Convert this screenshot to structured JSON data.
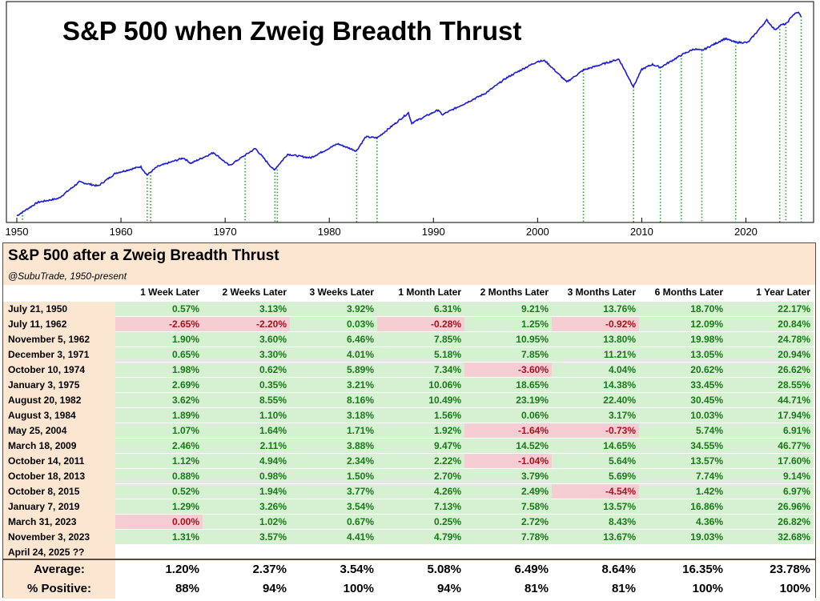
{
  "chart_data": {
    "type": "line",
    "title": "S&P 500 when Zweig Breadth Thrust",
    "xlabel": "",
    "ylabel": "",
    "yscale": "log",
    "xlim": [
      1949,
      2026.5
    ],
    "x_ticks": [
      "1950",
      "1960",
      "1970",
      "1980",
      "1990",
      "2000",
      "2010",
      "2020"
    ],
    "grid": false,
    "series": [
      {
        "color": "#1a1ad6",
        "x": [
          1950.0,
          1952.0,
          1954.0,
          1956.0,
          1957.8,
          1959.5,
          1961.9,
          1962.5,
          1963.5,
          1966.0,
          1966.7,
          1968.9,
          1970.4,
          1972.9,
          1974.7,
          1974.9,
          1976.0,
          1977.0,
          1978.2,
          1980.8,
          1982.6,
          1983.5,
          1984.6,
          1987.6,
          1987.9,
          1990.5,
          1990.8,
          1995.0,
          1997.0,
          1998.5,
          2000.0,
          2000.7,
          2002.8,
          2004.4,
          2007.8,
          2009.2,
          2010.0,
          2011.0,
          2011.8,
          2013.8,
          2015.0,
          2015.8,
          2018.0,
          2019.0,
          2020.2,
          2022.0,
          2022.8,
          2023.3,
          2023.9,
          2024.5,
          2025.0,
          2025.3
        ],
        "y": [
          17,
          25,
          28,
          45,
          40,
          58,
          70,
          55,
          70,
          90,
          77,
          105,
          72,
          118,
          63,
          68,
          100,
          95,
          90,
          135,
          110,
          165,
          160,
          330,
          245,
          360,
          310,
          580,
          900,
          1150,
          1450,
          1480,
          800,
          1130,
          1550,
          700,
          1150,
          1330,
          1220,
          1740,
          2070,
          1990,
          2800,
          2510,
          2500,
          4750,
          3600,
          4100,
          4300,
          5500,
          6000,
          5300
        ]
      }
    ],
    "events": [
      "1950.55",
      "1962.52",
      "1962.85",
      "1971.92",
      "1974.78",
      "1975.01",
      "1982.63",
      "1984.59",
      "2004.40",
      "2009.21",
      "2011.79",
      "2013.80",
      "2015.77",
      "2019.02",
      "2023.25",
      "2023.84",
      "2025.31"
    ]
  },
  "table": {
    "title": "S&P 500 after a Zweig Breadth Thrust",
    "credit": "@SubuTrade, 1950-present",
    "columns": [
      "1 Week Later",
      "2 Weeks Later",
      "3 Weeks Later",
      "1 Month Later",
      "2 Months Later",
      "3 Months Later",
      "6 Months Later",
      "1 Year Later"
    ],
    "rows": [
      {
        "date": "July 21, 1950",
        "values": [
          "0.57%",
          "3.13%",
          "3.92%",
          "6.31%",
          "9.21%",
          "13.76%",
          "18.70%",
          "22.17%"
        ]
      },
      {
        "date": "July 11, 1962",
        "values": [
          "-2.65%",
          "-2.20%",
          "0.03%",
          "-0.28%",
          "1.25%",
          "-0.92%",
          "12.09%",
          "20.84%"
        ]
      },
      {
        "date": "November 5, 1962",
        "values": [
          "1.90%",
          "3.60%",
          "6.46%",
          "7.85%",
          "10.95%",
          "13.80%",
          "19.98%",
          "24.78%"
        ]
      },
      {
        "date": "December 3, 1971",
        "values": [
          "0.65%",
          "3.30%",
          "4.01%",
          "5.18%",
          "7.85%",
          "11.21%",
          "13.05%",
          "20.94%"
        ]
      },
      {
        "date": "October 10, 1974",
        "values": [
          "1.98%",
          "0.62%",
          "5.89%",
          "7.34%",
          "-3.60%",
          "4.04%",
          "20.62%",
          "26.62%"
        ]
      },
      {
        "date": "January 3, 1975",
        "values": [
          "2.69%",
          "0.35%",
          "3.21%",
          "10.06%",
          "18.65%",
          "14.38%",
          "33.45%",
          "28.55%"
        ]
      },
      {
        "date": "August 20, 1982",
        "values": [
          "3.62%",
          "8.55%",
          "8.16%",
          "10.49%",
          "23.19%",
          "22.40%",
          "30.45%",
          "44.71%"
        ]
      },
      {
        "date": "August 3, 1984",
        "values": [
          "1.89%",
          "1.10%",
          "3.18%",
          "1.56%",
          "0.06%",
          "3.17%",
          "10.03%",
          "17.94%"
        ]
      },
      {
        "date": "May 25, 2004",
        "values": [
          "1.07%",
          "1.64%",
          "1.71%",
          "1.92%",
          "-1.64%",
          "-0.73%",
          "5.74%",
          "6.91%"
        ]
      },
      {
        "date": "March 18, 2009",
        "values": [
          "2.46%",
          "2.11%",
          "3.88%",
          "9.47%",
          "14.52%",
          "14.65%",
          "34.55%",
          "46.77%"
        ]
      },
      {
        "date": "October 14, 2011",
        "values": [
          "1.12%",
          "4.94%",
          "2.34%",
          "2.22%",
          "-1.04%",
          "5.64%",
          "13.57%",
          "17.60%"
        ]
      },
      {
        "date": "October 18, 2013",
        "values": [
          "0.88%",
          "0.98%",
          "1.50%",
          "2.70%",
          "3.79%",
          "5.69%",
          "7.74%",
          "9.14%"
        ]
      },
      {
        "date": "October 8, 2015",
        "values": [
          "0.52%",
          "1.94%",
          "3.77%",
          "4.26%",
          "2.49%",
          "-4.54%",
          "1.42%",
          "6.97%"
        ]
      },
      {
        "date": "January 7, 2019",
        "values": [
          "1.29%",
          "3.26%",
          "3.54%",
          "7.13%",
          "7.58%",
          "13.57%",
          "16.86%",
          "26.96%"
        ]
      },
      {
        "date": "March 31, 2023",
        "values": [
          "0.00%",
          "1.02%",
          "0.67%",
          "0.25%",
          "2.72%",
          "8.43%",
          "4.36%",
          "26.82%"
        ]
      },
      {
        "date": "November 3, 2023",
        "values": [
          "1.31%",
          "3.57%",
          "4.41%",
          "4.79%",
          "7.78%",
          "13.67%",
          "19.03%",
          "32.68%"
        ]
      },
      {
        "date": "April 24, 2025 ??",
        "values": []
      }
    ],
    "negative_cells": [
      [
        1,
        0
      ],
      [
        1,
        1
      ],
      [
        1,
        3
      ],
      [
        1,
        5
      ],
      [
        4,
        4
      ],
      [
        8,
        4
      ],
      [
        8,
        5
      ],
      [
        10,
        4
      ],
      [
        12,
        5
      ],
      [
        14,
        0
      ]
    ],
    "summary": [
      {
        "label": "Average:",
        "values": [
          "1.20%",
          "2.37%",
          "3.54%",
          "5.08%",
          "6.49%",
          "8.64%",
          "16.35%",
          "23.78%"
        ]
      },
      {
        "label": "% Positive:",
        "values": [
          "88%",
          "94%",
          "100%",
          "94%",
          "81%",
          "81%",
          "100%",
          "100%"
        ]
      }
    ]
  }
}
